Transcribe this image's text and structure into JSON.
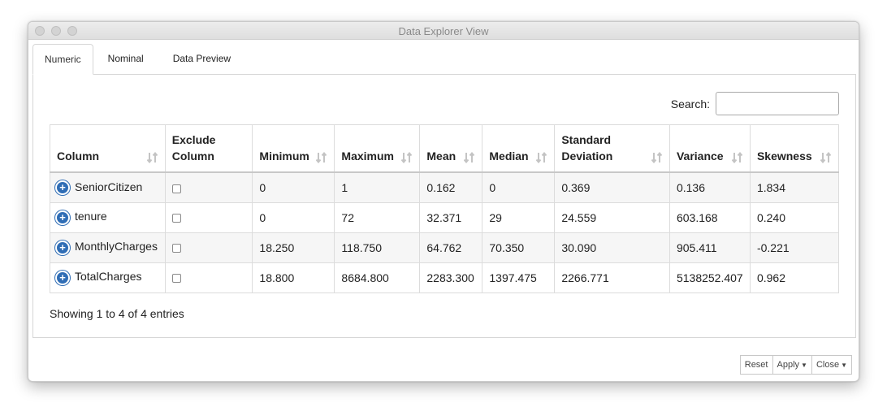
{
  "window": {
    "title": "Data Explorer View"
  },
  "tabs": [
    {
      "label": "Numeric",
      "active": true
    },
    {
      "label": "Nominal",
      "active": false
    },
    {
      "label": "Data Preview",
      "active": false
    }
  ],
  "search": {
    "label": "Search:",
    "value": ""
  },
  "table": {
    "headers": [
      {
        "line1": "",
        "line2": "Column",
        "sortable": true
      },
      {
        "line1": "Exclude",
        "line2": "Column",
        "sortable": false
      },
      {
        "line1": "",
        "line2": "Minimum",
        "sortable": true
      },
      {
        "line1": "",
        "line2": "Maximum",
        "sortable": true
      },
      {
        "line1": "",
        "line2": "Mean",
        "sortable": true
      },
      {
        "line1": "",
        "line2": "Median",
        "sortable": true
      },
      {
        "line1": "Standard",
        "line2": "Deviation",
        "sortable": true
      },
      {
        "line1": "",
        "line2": "Variance",
        "sortable": true
      },
      {
        "line1": "",
        "line2": "Skewness",
        "sortable": true
      }
    ],
    "rows": [
      {
        "column": "SeniorCitizen",
        "exclude": false,
        "minimum": "0",
        "maximum": "1",
        "mean": "0.162",
        "median": "0",
        "std": "0.369",
        "variance": "0.136",
        "skewness": "1.834"
      },
      {
        "column": "tenure",
        "exclude": false,
        "minimum": "0",
        "maximum": "72",
        "mean": "32.371",
        "median": "29",
        "std": "24.559",
        "variance": "603.168",
        "skewness": "0.240"
      },
      {
        "column": "MonthlyCharges",
        "exclude": false,
        "minimum": "18.250",
        "maximum": "118.750",
        "mean": "64.762",
        "median": "70.350",
        "std": "30.090",
        "variance": "905.411",
        "skewness": "-0.221"
      },
      {
        "column": "TotalCharges",
        "exclude": false,
        "minimum": "18.800",
        "maximum": "8684.800",
        "mean": "2283.300",
        "median": "1397.475",
        "std": "2266.771",
        "variance": "5138252.407",
        "skewness": "0.962"
      }
    ],
    "info": "Showing 1 to 4 of 4 entries"
  },
  "buttons": {
    "reset": "Reset",
    "apply": "Apply",
    "close": "Close"
  },
  "icons": {
    "expand": "plus-circle-icon",
    "sort": "sort-arrows-icon"
  },
  "colors": {
    "expand_icon": "#2f6db5",
    "sort_icon": "#c4c4c4"
  }
}
